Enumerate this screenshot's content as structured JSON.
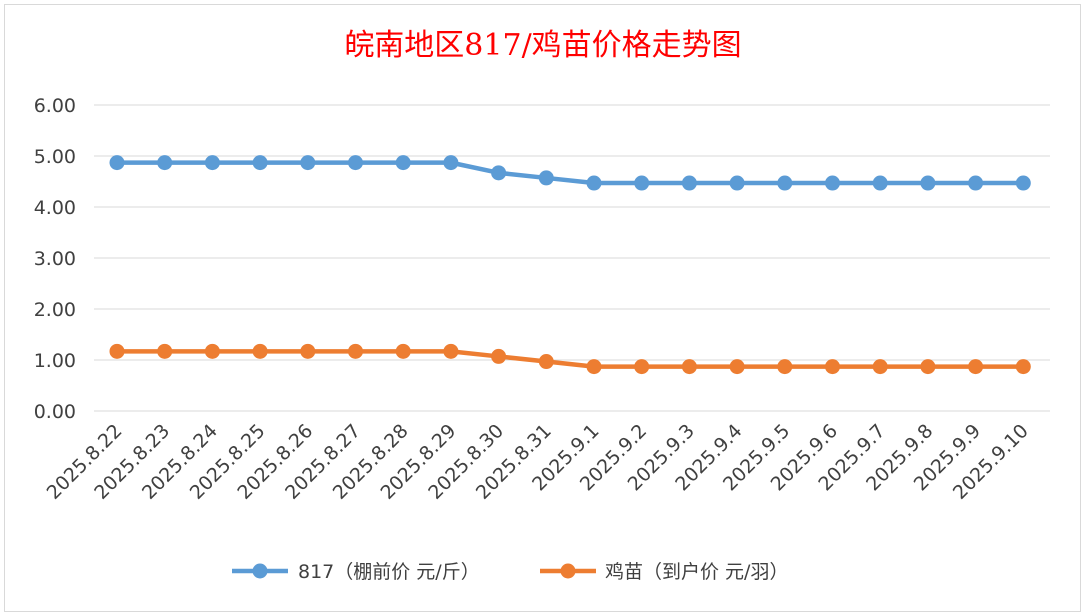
{
  "chart_data": {
    "type": "line",
    "title": "皖南地区817/鸡苗价格走势图",
    "xlabel": "",
    "ylabel": "",
    "ylim": [
      0,
      6
    ],
    "yticks": [
      "0.00",
      "1.00",
      "2.00",
      "3.00",
      "4.00",
      "5.00",
      "6.00"
    ],
    "grid": true,
    "legend_position": "bottom",
    "categories": [
      "2025.8.22",
      "2025.8.23",
      "2025.8.24",
      "2025.8.25",
      "2025.8.26",
      "2025.8.27",
      "2025.8.28",
      "2025.8.29",
      "2025.8.30",
      "2025.8.31",
      "2025.9.1",
      "2025.9.2",
      "2025.9.3",
      "2025.9.4",
      "2025.9.5",
      "2025.9.6",
      "2025.9.7",
      "2025.9.8",
      "2025.9.9",
      "2025.9.10"
    ],
    "series": [
      {
        "name": "817（棚前价 元/斤）",
        "color": "#5b9bd5",
        "values": [
          4.87,
          4.87,
          4.87,
          4.87,
          4.87,
          4.87,
          4.87,
          4.87,
          4.67,
          4.57,
          4.47,
          4.47,
          4.47,
          4.47,
          4.47,
          4.47,
          4.47,
          4.47,
          4.47,
          4.47
        ]
      },
      {
        "name": "鸡苗（到户价 元/羽）",
        "color": "#ed7d31",
        "values": [
          1.17,
          1.17,
          1.17,
          1.17,
          1.17,
          1.17,
          1.17,
          1.17,
          1.07,
          0.97,
          0.87,
          0.87,
          0.87,
          0.87,
          0.87,
          0.87,
          0.87,
          0.87,
          0.87,
          0.87
        ]
      }
    ]
  }
}
